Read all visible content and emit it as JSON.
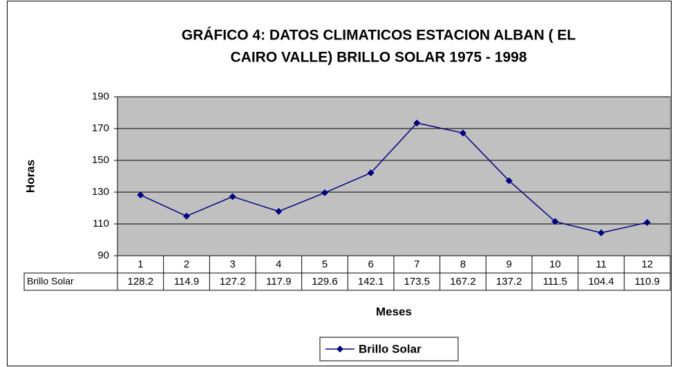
{
  "chart_data": {
    "type": "line",
    "title": "GRÁFICO 4:  DATOS CLIMATICOS ESTACION ALBAN ( EL",
    "subtitle": "CAIRO VALLE) BRILLO SOLAR 1975 - 1998",
    "y_label": "Horas",
    "x_label": "Meses",
    "categories": [
      "1",
      "2",
      "3",
      "4",
      "5",
      "6",
      "7",
      "8",
      "9",
      "10",
      "11",
      "12"
    ],
    "series": [
      {
        "name": "Brillo Solar",
        "color": "#000080",
        "values": [
          128.2,
          114.9,
          127.2,
          117.9,
          129.6,
          142.1,
          173.5,
          167.2,
          137.2,
          111.5,
          104.4,
          110.9
        ]
      }
    ],
    "ylim": [
      90,
      190
    ],
    "yticks": [
      90,
      110,
      130,
      150,
      170,
      190
    ],
    "grid": true,
    "plot_color": "#c0c0c0",
    "legend": "bottom"
  }
}
